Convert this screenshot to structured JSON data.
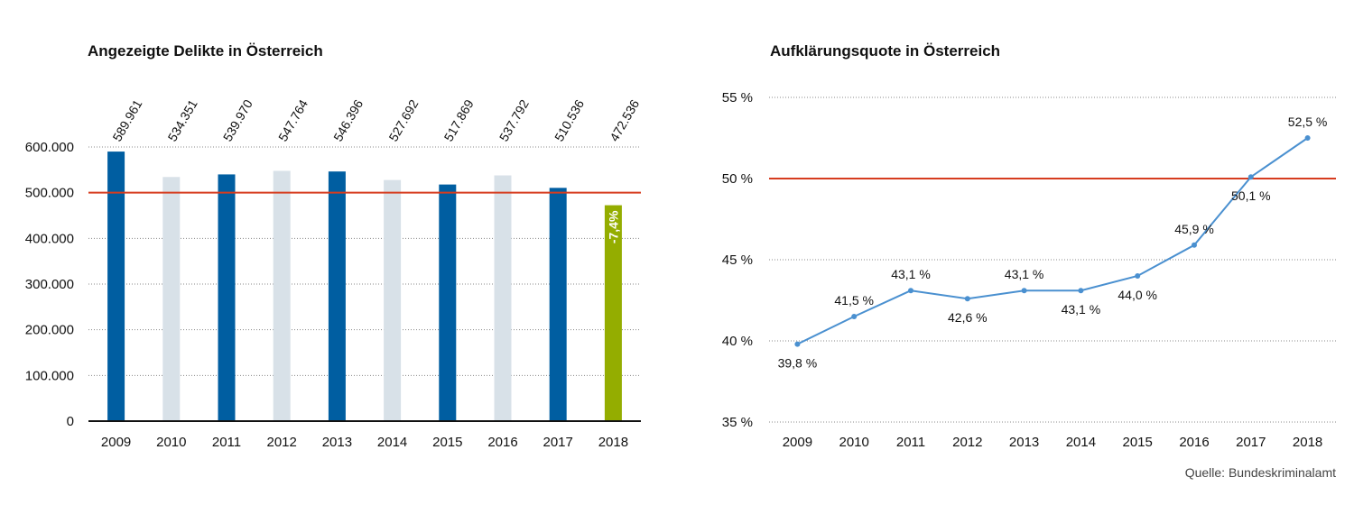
{
  "source": "Quelle: Bundeskriminalamt",
  "colors": {
    "dark_blue": "#005ea1",
    "light_grey": "#d8e1e8",
    "highlight_green": "#94ad00",
    "reference_red": "#d63c1f",
    "line_blue": "#4a90d0",
    "grid": "#888888",
    "axis": "#111111"
  },
  "chart_data": [
    {
      "type": "bar",
      "title": "Angezeigte Delikte in Österreich",
      "xlabel": "",
      "ylabel": "",
      "categories": [
        "2009",
        "2010",
        "2011",
        "2012",
        "2013",
        "2014",
        "2015",
        "2016",
        "2017",
        "2018"
      ],
      "values": [
        589961,
        534351,
        539970,
        547764,
        546396,
        527692,
        517869,
        537792,
        510536,
        472536
      ],
      "value_labels": [
        "589.961",
        "534.351",
        "539.970",
        "547.764",
        "546.396",
        "527.692",
        "517.869",
        "537.792",
        "510.536",
        "472.536"
      ],
      "bar_colors": [
        "dark_blue",
        "light_grey",
        "dark_blue",
        "light_grey",
        "dark_blue",
        "light_grey",
        "dark_blue",
        "light_grey",
        "dark_blue",
        "highlight_green"
      ],
      "ylim": [
        0,
        600000
      ],
      "yticks": [
        0,
        100000,
        200000,
        300000,
        400000,
        500000,
        600000
      ],
      "ytick_labels": [
        "0",
        "100.000",
        "200.000",
        "300.000",
        "400.000",
        "500.000",
        "600.000"
      ],
      "reference_line": 500000,
      "bar_annotation": {
        "index": 9,
        "text": "-7,4%"
      },
      "grid": true
    },
    {
      "type": "line",
      "title": "Aufklärungsquote in Österreich",
      "xlabel": "",
      "ylabel": "",
      "x": [
        "2009",
        "2010",
        "2011",
        "2012",
        "2013",
        "2014",
        "2015",
        "2016",
        "2017",
        "2018"
      ],
      "values": [
        39.8,
        41.5,
        43.1,
        42.6,
        43.1,
        43.1,
        44.0,
        45.9,
        50.1,
        52.5
      ],
      "value_labels": [
        "39,8 %",
        "41,5 %",
        "43,1 %",
        "42,6 %",
        "43,1 %",
        "43,1 %",
        "44,0 %",
        "45,9 %",
        "50,1 %",
        "52,5 %"
      ],
      "label_positions": [
        "below",
        "above",
        "above",
        "below",
        "above",
        "below",
        "below",
        "above",
        "below",
        "above"
      ],
      "ylim": [
        35,
        55
      ],
      "yticks": [
        35,
        40,
        45,
        50,
        55
      ],
      "ytick_labels": [
        "35 %",
        "40 %",
        "45 %",
        "50 %",
        "55 %"
      ],
      "reference_line": 50,
      "grid": true
    }
  ]
}
